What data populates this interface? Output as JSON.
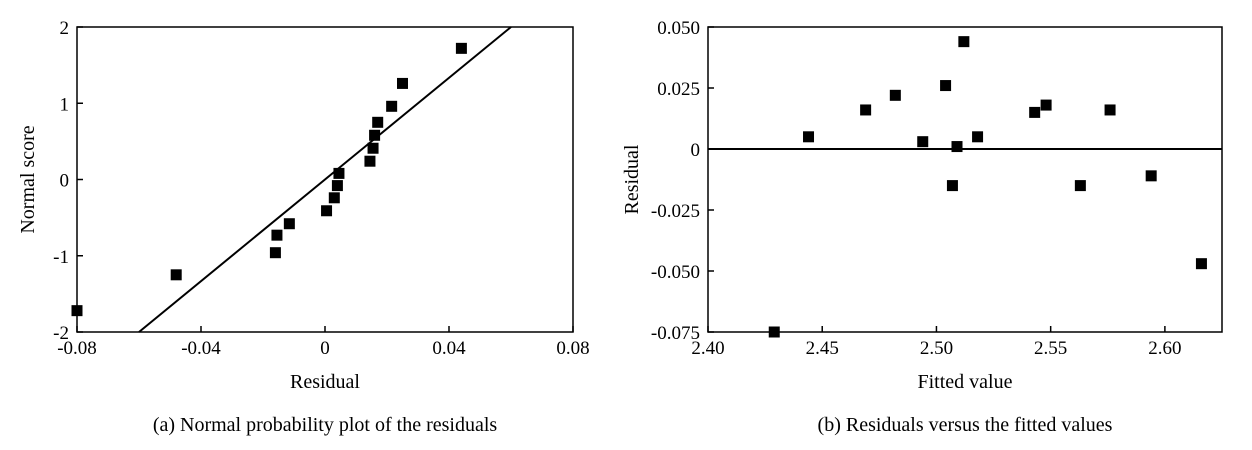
{
  "chart_data": [
    {
      "type": "scatter",
      "caption": "(a) Normal probability plot of the residuals",
      "xlabel": "Residual",
      "ylabel": "Normal score",
      "xlim": [
        -0.08,
        0.08
      ],
      "ylim": [
        -2,
        2
      ],
      "x_ticks": [
        -0.08,
        -0.04,
        0,
        0.04,
        0.08
      ],
      "x_tick_labels": [
        "-0.08",
        "-0.04",
        "0",
        "0.04",
        "0.08"
      ],
      "y_ticks": [
        -2,
        -1,
        0,
        1,
        2
      ],
      "y_tick_labels": [
        "-2",
        "-1",
        "0",
        "1",
        "2"
      ],
      "grid": false,
      "points": [
        {
          "x": -0.08,
          "y": -1.72
        },
        {
          "x": -0.048,
          "y": -1.25
        },
        {
          "x": -0.016,
          "y": -0.96
        },
        {
          "x": -0.0155,
          "y": -0.73
        },
        {
          "x": -0.0115,
          "y": -0.58
        },
        {
          "x": 0.0005,
          "y": -0.41
        },
        {
          "x": 0.003,
          "y": -0.24
        },
        {
          "x": 0.004,
          "y": -0.08
        },
        {
          "x": 0.0045,
          "y": 0.08
        },
        {
          "x": 0.0145,
          "y": 0.24
        },
        {
          "x": 0.0155,
          "y": 0.41
        },
        {
          "x": 0.016,
          "y": 0.58
        },
        {
          "x": 0.017,
          "y": 0.75
        },
        {
          "x": 0.0215,
          "y": 0.96
        },
        {
          "x": 0.025,
          "y": 1.26
        },
        {
          "x": 0.044,
          "y": 1.72
        }
      ],
      "fit_line": [
        {
          "x": -0.06,
          "y": -2
        },
        {
          "x": 0.06,
          "y": 2
        }
      ]
    },
    {
      "type": "scatter",
      "caption": "(b) Residuals versus the fitted values",
      "xlabel": "Fitted value",
      "ylabel": "Residual",
      "xlim": [
        2.4,
        2.625
      ],
      "ylim": [
        -0.075,
        0.05
      ],
      "x_ticks": [
        2.4,
        2.45,
        2.5,
        2.55,
        2.6
      ],
      "x_tick_labels": [
        "2.40",
        "2.45",
        "2.50",
        "2.55",
        "2.60"
      ],
      "y_ticks": [
        0.05,
        0.025,
        0,
        -0.025,
        -0.05,
        -0.075
      ],
      "y_tick_labels": [
        "0.050",
        "0.025",
        "0",
        "-0.025",
        "-0.050",
        "-0.075"
      ],
      "grid": false,
      "reference_line_y": 0,
      "points": [
        {
          "x": 2.429,
          "y": -0.075
        },
        {
          "x": 2.444,
          "y": 0.005
        },
        {
          "x": 2.469,
          "y": 0.016
        },
        {
          "x": 2.482,
          "y": 0.022
        },
        {
          "x": 2.494,
          "y": 0.003
        },
        {
          "x": 2.504,
          "y": 0.026
        },
        {
          "x": 2.507,
          "y": -0.015
        },
        {
          "x": 2.509,
          "y": 0.001
        },
        {
          "x": 2.512,
          "y": 0.044
        },
        {
          "x": 2.518,
          "y": 0.005
        },
        {
          "x": 2.543,
          "y": 0.015
        },
        {
          "x": 2.548,
          "y": 0.018
        },
        {
          "x": 2.563,
          "y": -0.015
        },
        {
          "x": 2.576,
          "y": 0.016
        },
        {
          "x": 2.594,
          "y": -0.011
        },
        {
          "x": 2.616,
          "y": -0.047
        }
      ]
    }
  ]
}
